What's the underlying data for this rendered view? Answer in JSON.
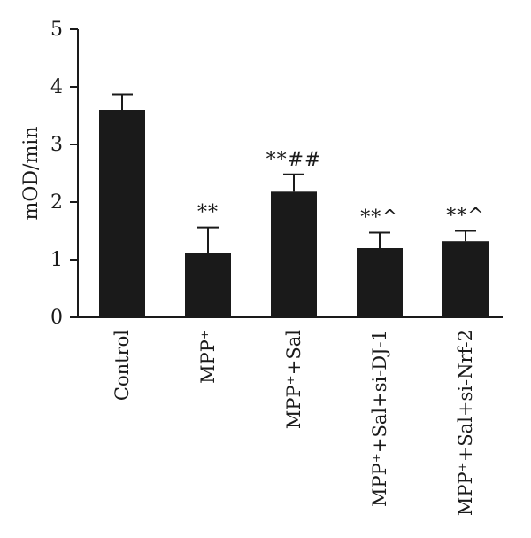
{
  "chart_data": {
    "type": "bar",
    "title": "",
    "xlabel": "",
    "ylabel": "mOD/min",
    "ylim": [
      0,
      5
    ],
    "yticks": [
      "0",
      "1",
      "2",
      "3",
      "4",
      "5"
    ],
    "grid": false,
    "bar_color": "#1a1a1a",
    "categories": [
      "Control",
      "MPP⁺",
      "MPP⁺+Sal",
      "MPP⁺+Sal+si-DJ-1",
      "MPP⁺+Sal+si-Nrf-2"
    ],
    "values": [
      3.6,
      1.12,
      2.18,
      1.2,
      1.32
    ],
    "errors": [
      0.27,
      0.44,
      0.3,
      0.27,
      0.18
    ],
    "annotations": [
      "",
      "**",
      "**##",
      "**^",
      "**^"
    ]
  }
}
